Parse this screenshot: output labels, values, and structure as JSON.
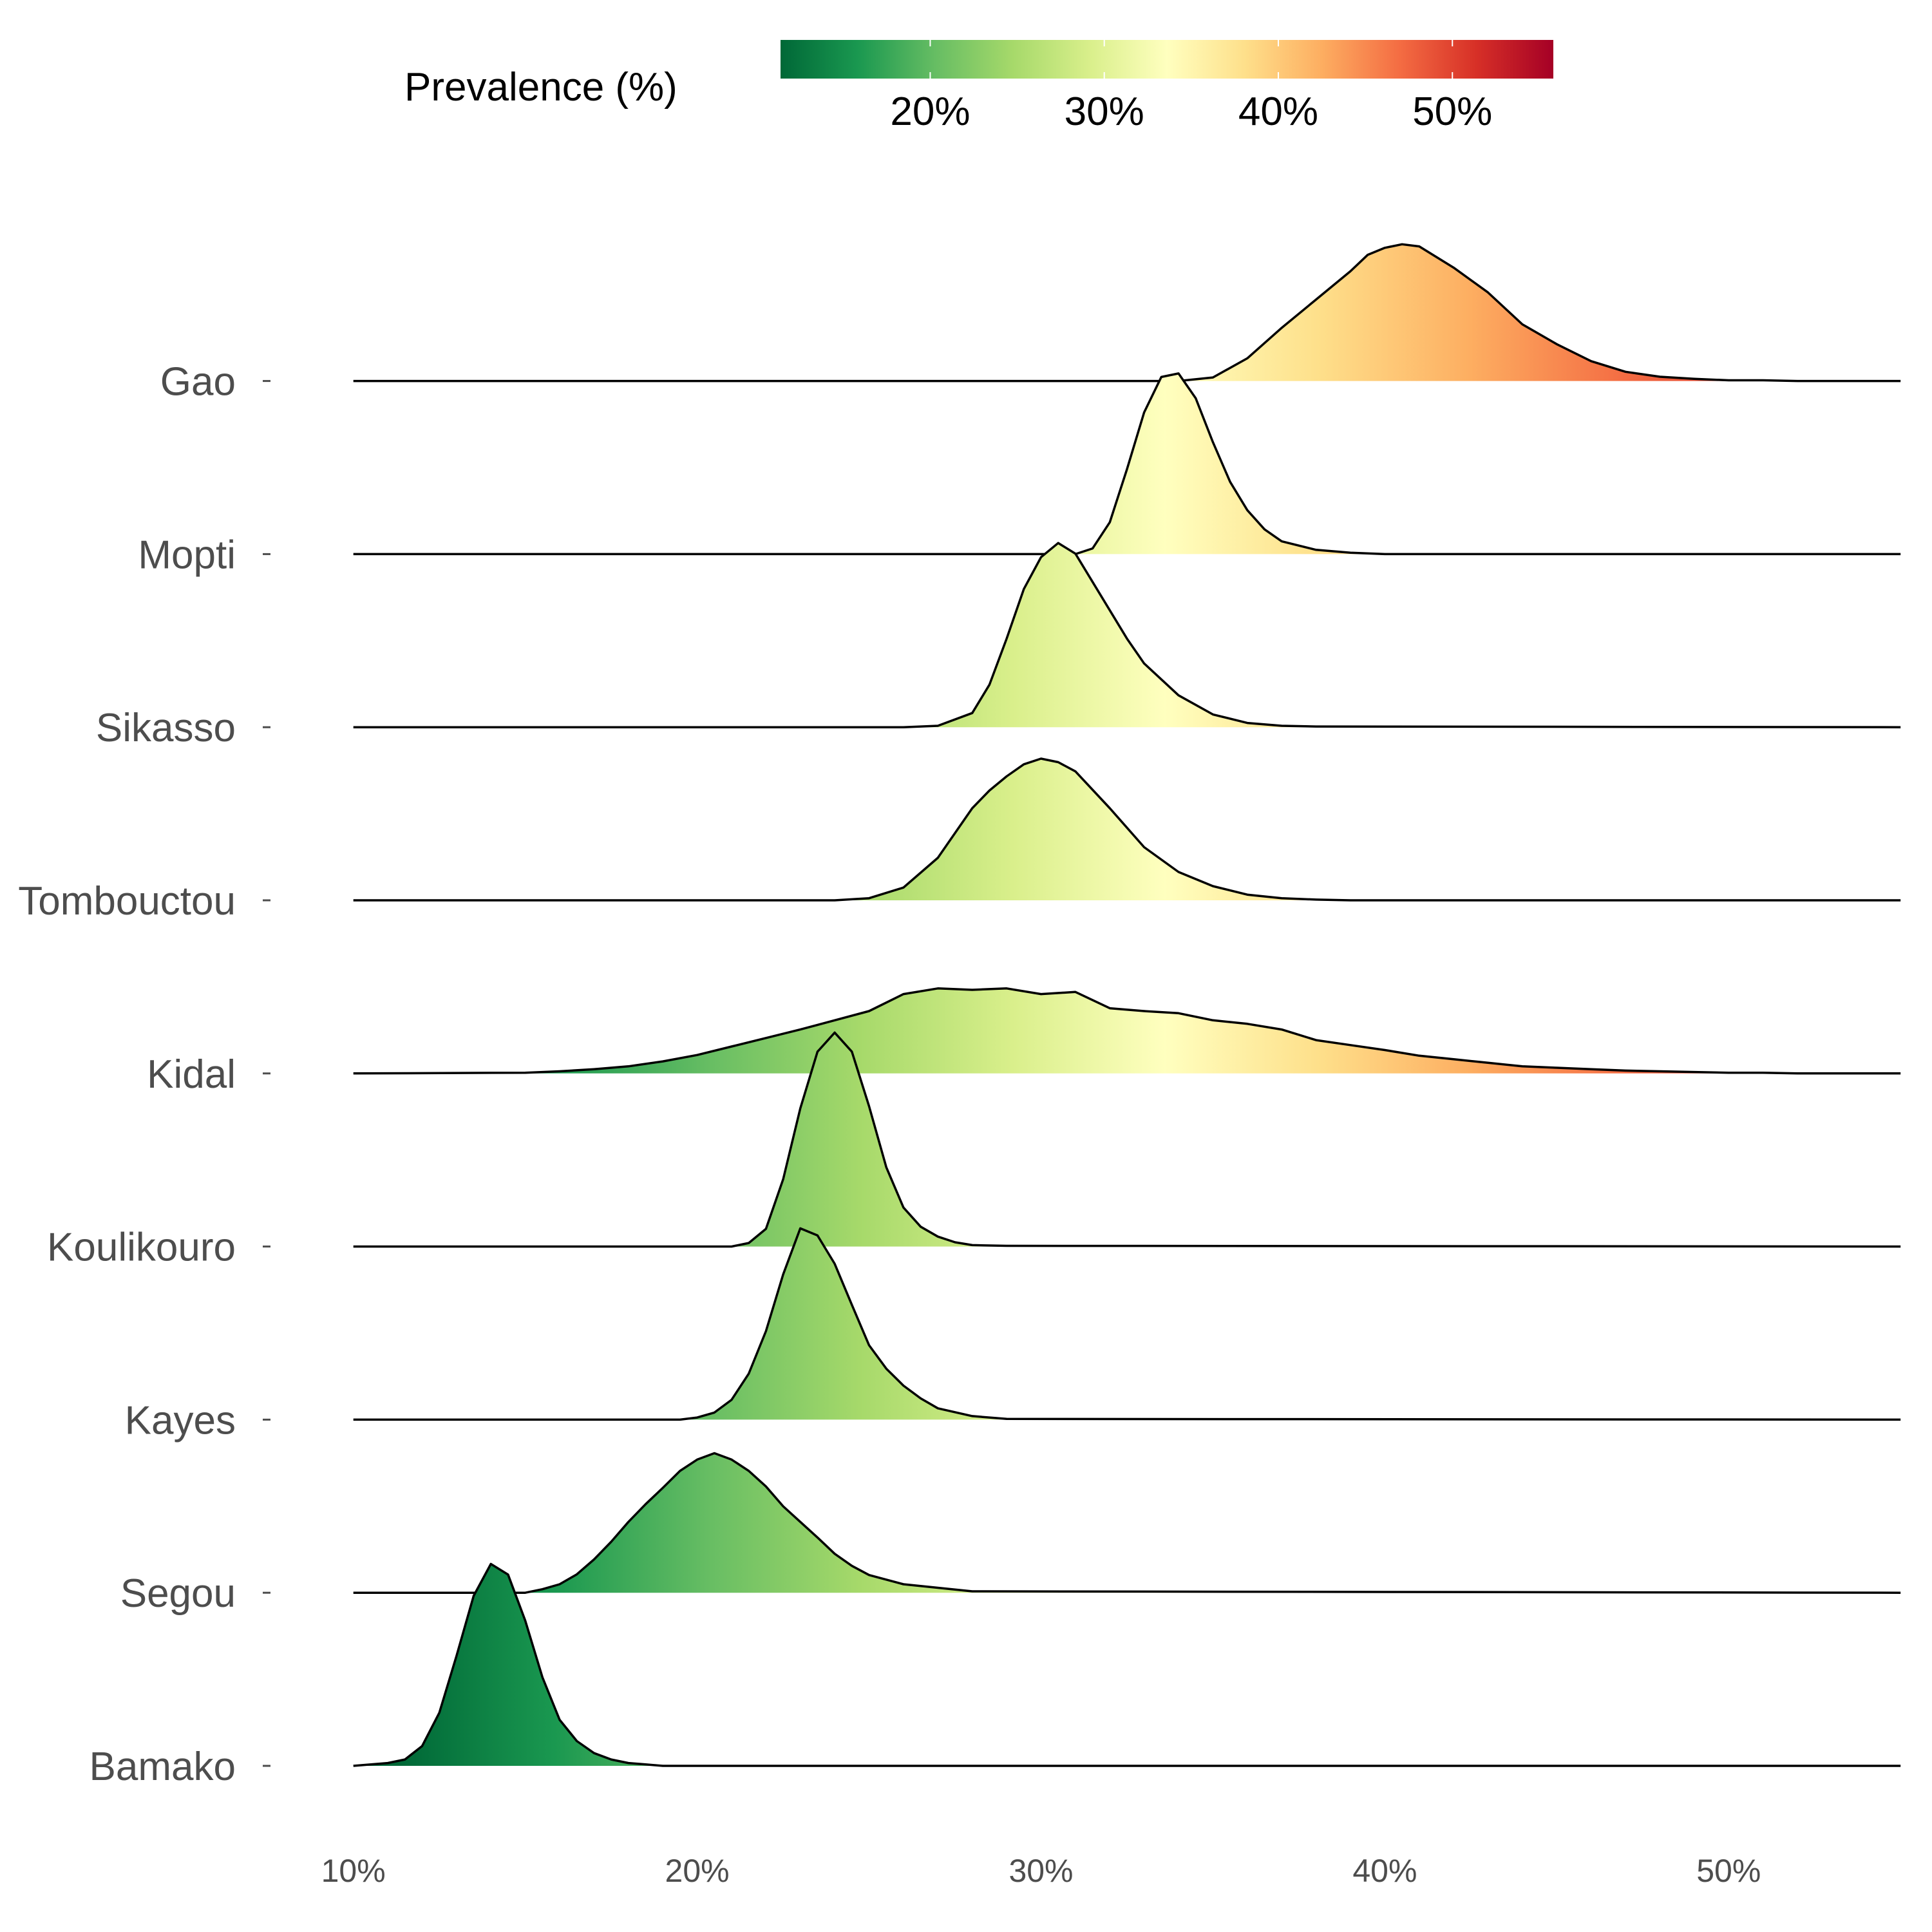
{
  "chart_data": {
    "type": "ridgeline",
    "xlabel": "",
    "ylabel": "",
    "xlim": [
      9.8,
      55
    ],
    "x_ticks": [
      10,
      20,
      30,
      40,
      50
    ],
    "x_tick_labels": [
      "10%",
      "20%",
      "30%",
      "40%",
      "50%"
    ],
    "legend": {
      "title": "Prevalence (%)",
      "range": [
        11.4,
        55.8
      ],
      "ticks": [
        20,
        30,
        40,
        50
      ],
      "tick_labels": [
        "20%",
        "30%",
        "40%",
        "50%"
      ],
      "placement": "top",
      "colors": [
        "#006837",
        "#1a9850",
        "#66bd63",
        "#a6d96a",
        "#d9ef8b",
        "#ffffbf",
        "#fee08b",
        "#fdae61",
        "#f46d43",
        "#d73027",
        "#a50026"
      ]
    },
    "series": [
      {
        "name": "Bamako",
        "x": [
          10,
          11,
          11.5,
          12,
          12.5,
          13,
          13.5,
          14,
          14.5,
          15,
          15.5,
          16,
          16.5,
          17,
          17.5,
          18,
          18.5,
          19,
          20,
          55
        ],
        "density": [
          0,
          0.04,
          0.09,
          0.28,
          0.75,
          1.55,
          2.4,
          2.85,
          2.7,
          2.05,
          1.25,
          0.65,
          0.35,
          0.18,
          0.09,
          0.04,
          0.02,
          0,
          0,
          0
        ]
      },
      {
        "name": "Segou",
        "x": [
          10,
          15,
          15.5,
          16,
          16.5,
          17,
          17.5,
          18,
          18.5,
          19,
          19.5,
          20,
          20.5,
          21,
          21.5,
          22,
          22.5,
          23,
          23.5,
          24,
          24.5,
          25,
          26,
          27,
          28,
          55
        ],
        "density": [
          0,
          0,
          0.05,
          0.12,
          0.26,
          0.47,
          0.72,
          1.0,
          1.25,
          1.48,
          1.72,
          1.88,
          1.97,
          1.88,
          1.72,
          1.5,
          1.22,
          1.0,
          0.78,
          0.55,
          0.38,
          0.25,
          0.12,
          0.07,
          0.02,
          0
        ]
      },
      {
        "name": "Kayes",
        "x": [
          10,
          19.5,
          20,
          20.5,
          21,
          21.5,
          22,
          22.5,
          23,
          23.5,
          24,
          24.5,
          25,
          25.5,
          26,
          26.5,
          27,
          28,
          29,
          55
        ],
        "density": [
          0,
          0,
          0.03,
          0.1,
          0.28,
          0.65,
          1.25,
          2.05,
          2.7,
          2.6,
          2.2,
          1.62,
          1.05,
          0.72,
          0.48,
          0.3,
          0.16,
          0.05,
          0.01,
          0
        ]
      },
      {
        "name": "Koulikouro",
        "x": [
          10,
          21,
          21.5,
          22,
          22.5,
          23,
          23.5,
          24,
          24.5,
          25,
          25.5,
          26,
          26.5,
          27,
          27.5,
          28,
          29,
          55
        ],
        "density": [
          0,
          0,
          0.05,
          0.25,
          0.95,
          1.95,
          2.75,
          3.02,
          2.75,
          1.98,
          1.12,
          0.55,
          0.28,
          0.14,
          0.06,
          0.02,
          0.01,
          0
        ]
      },
      {
        "name": "Kidal",
        "x": [
          10,
          15,
          16,
          17,
          18,
          19,
          20,
          21,
          22,
          23,
          24,
          25,
          26,
          27,
          28,
          29,
          30,
          31,
          32,
          33,
          34,
          35,
          36,
          37,
          38,
          39,
          40,
          41,
          42,
          43,
          44,
          45,
          46,
          47,
          48,
          49,
          50,
          51,
          52,
          53,
          55
        ],
        "density": [
          0,
          0.01,
          0.03,
          0.06,
          0.1,
          0.17,
          0.26,
          0.38,
          0.5,
          0.62,
          0.75,
          0.88,
          1.12,
          1.2,
          1.18,
          1.2,
          1.12,
          1.15,
          0.92,
          0.88,
          0.85,
          0.75,
          0.7,
          0.62,
          0.47,
          0.4,
          0.33,
          0.25,
          0.2,
          0.15,
          0.1,
          0.08,
          0.06,
          0.04,
          0.03,
          0.02,
          0.01,
          0.01,
          0,
          0,
          0
        ]
      },
      {
        "name": "Tombouctou",
        "x": [
          10,
          24,
          25,
          26,
          27,
          28,
          28.5,
          29,
          29.5,
          30,
          30.5,
          31,
          32,
          33,
          34,
          35,
          36,
          37,
          38,
          39,
          55
        ],
        "density": [
          0,
          0,
          0.03,
          0.18,
          0.6,
          1.3,
          1.55,
          1.75,
          1.92,
          2.0,
          1.95,
          1.82,
          1.3,
          0.75,
          0.4,
          0.2,
          0.08,
          0.03,
          0.01,
          0,
          0
        ]
      },
      {
        "name": "Sikasso",
        "x": [
          10,
          26,
          27,
          28,
          28.5,
          29,
          29.5,
          30,
          30.5,
          31,
          31.5,
          32,
          32.5,
          33,
          34,
          35,
          36,
          37,
          38,
          55
        ],
        "density": [
          0,
          0,
          0.02,
          0.2,
          0.6,
          1.25,
          1.95,
          2.4,
          2.6,
          2.45,
          2.05,
          1.65,
          1.25,
          0.9,
          0.45,
          0.18,
          0.06,
          0.02,
          0.01,
          0
        ]
      },
      {
        "name": "Mopti",
        "x": [
          10,
          31,
          31.5,
          32,
          32.5,
          33,
          33.5,
          34,
          34.5,
          35,
          35.5,
          36,
          36.5,
          37,
          38,
          39,
          40,
          55
        ],
        "density": [
          0,
          0,
          0.08,
          0.45,
          1.2,
          2.0,
          2.5,
          2.55,
          2.2,
          1.58,
          1.02,
          0.62,
          0.35,
          0.18,
          0.06,
          0.02,
          0,
          0
        ]
      },
      {
        "name": "Gao",
        "x": [
          10,
          34,
          35,
          36,
          37,
          38,
          39,
          39.5,
          40,
          40.5,
          41,
          41.5,
          42,
          43,
          44,
          45,
          46,
          47,
          48,
          49,
          50,
          51,
          52,
          53,
          55
        ],
        "density": [
          0,
          0,
          0.05,
          0.32,
          0.75,
          1.15,
          1.55,
          1.78,
          1.88,
          1.93,
          1.9,
          1.75,
          1.6,
          1.25,
          0.8,
          0.52,
          0.28,
          0.13,
          0.06,
          0.03,
          0.01,
          0.01,
          0,
          0,
          0
        ]
      }
    ]
  }
}
